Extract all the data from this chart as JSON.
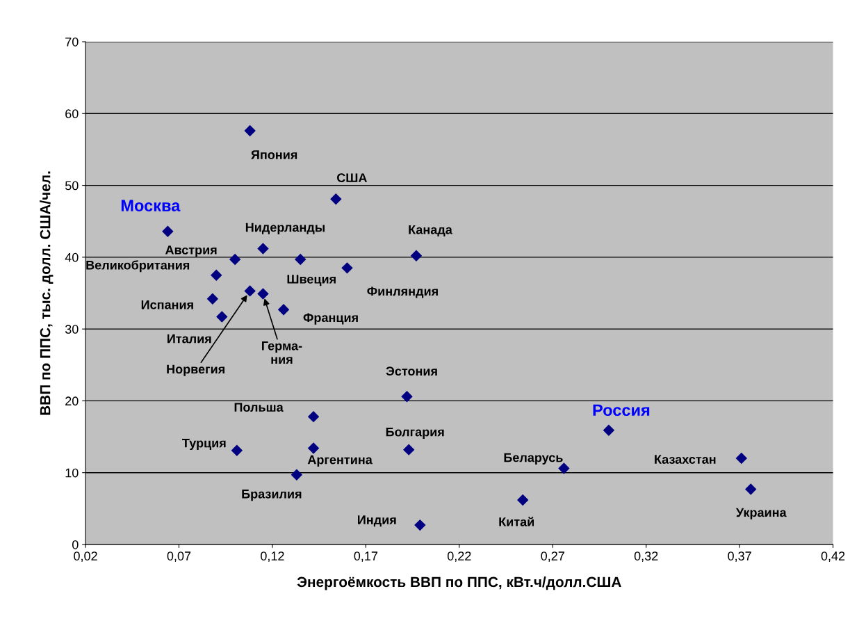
{
  "chart_data": {
    "type": "scatter",
    "xlabel": "Энергоёмкость ВВП по ППС, кВт.ч/долл.США",
    "ylabel": "ВВП по ППС, тыс. долл. США/чел.",
    "x": [
      0.108,
      0.154,
      0.064,
      0.115,
      0.197,
      0.1,
      0.135,
      0.16,
      0.09,
      0.108,
      0.115,
      0.088,
      0.126,
      0.093,
      0.192,
      0.142,
      0.3,
      0.142,
      0.193,
      0.101,
      0.371,
      0.276,
      0.133,
      0.376,
      0.254,
      0.199
    ],
    "series": [
      {
        "color": "#000080",
        "values": [
          57.6,
          48.1,
          43.6,
          41.2,
          40.2,
          39.7,
          39.7,
          38.5,
          37.5,
          35.3,
          34.9,
          34.2,
          32.7,
          31.7,
          20.6,
          17.8,
          15.9,
          13.4,
          13.2,
          13.1,
          12.0,
          10.6,
          9.7,
          7.7,
          6.2,
          2.7
        ]
      }
    ],
    "annotations": [
      {
        "text": "Япония",
        "x": 0.108,
        "y": 57.6
      },
      {
        "text": "США",
        "x": 0.154,
        "y": 48.1
      },
      {
        "text": "Москва",
        "x": 0.064,
        "y": 43.6
      },
      {
        "text": "Нидерланды",
        "x": 0.115,
        "y": 41.2
      },
      {
        "text": "Канада",
        "x": 0.197,
        "y": 40.2
      },
      {
        "text": "Австрия",
        "x": 0.1,
        "y": 39.7
      },
      {
        "text": "Швеция",
        "x": 0.135,
        "y": 39.7
      },
      {
        "text": "Финляндия",
        "x": 0.16,
        "y": 38.5
      },
      {
        "text": "Великобритания",
        "x": 0.09,
        "y": 37.5
      },
      {
        "text": "Норвегия",
        "x": 0.108,
        "y": 35.3
      },
      {
        "text": "Герма-\nния",
        "x": 0.115,
        "y": 34.9
      },
      {
        "text": "Испания",
        "x": 0.088,
        "y": 34.2
      },
      {
        "text": "Франция",
        "x": 0.126,
        "y": 32.7
      },
      {
        "text": "Италия",
        "x": 0.093,
        "y": 31.7
      },
      {
        "text": "Эстония",
        "x": 0.192,
        "y": 20.6
      },
      {
        "text": "Польша",
        "x": 0.142,
        "y": 17.8
      },
      {
        "text": "Россия",
        "x": 0.3,
        "y": 15.9
      },
      {
        "text": "Аргентина",
        "x": 0.142,
        "y": 13.4
      },
      {
        "text": "Болгария",
        "x": 0.193,
        "y": 13.2
      },
      {
        "text": "Турция",
        "x": 0.101,
        "y": 13.1
      },
      {
        "text": "Казахстан",
        "x": 0.371,
        "y": 12.0
      },
      {
        "text": "Беларусь",
        "x": 0.276,
        "y": 10.6
      },
      {
        "text": "Бразилия",
        "x": 0.133,
        "y": 9.7
      },
      {
        "text": "Украина",
        "x": 0.376,
        "y": 7.7
      },
      {
        "text": "Китай",
        "x": 0.254,
        "y": 6.2
      },
      {
        "text": "Индия",
        "x": 0.199,
        "y": 2.7
      }
    ],
    "xlim": [
      0.02,
      0.42
    ],
    "xticks": [
      {
        "value": 0.02,
        "label": "0,02"
      },
      {
        "value": 0.07,
        "label": "0,07"
      },
      {
        "value": 0.12,
        "label": "0,12"
      },
      {
        "value": 0.17,
        "label": "0,17"
      },
      {
        "value": 0.22,
        "label": "0,22"
      },
      {
        "value": 0.27,
        "label": "0,27"
      },
      {
        "value": 0.32,
        "label": "0,32"
      },
      {
        "value": 0.37,
        "label": "0,37"
      },
      {
        "value": 0.42,
        "label": "0,42"
      }
    ],
    "ylim": [
      0,
      70
    ],
    "yticks": [
      0,
      10,
      20,
      30,
      40,
      50,
      60,
      70
    ],
    "grid": "y",
    "marker": "diamond",
    "legend": false
  }
}
